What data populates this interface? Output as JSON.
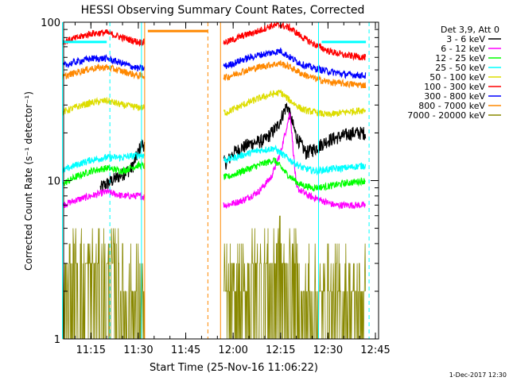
{
  "chart_data": {
    "type": "line",
    "title": "HESSI Observing Summary Count Rates, Corrected",
    "xlabel": "Start Time (25-Nov-16 11:06:22)",
    "ylabel": "Corrected Count Rate (s⁻¹ detector⁻¹)",
    "stamp": "1-Dec-2017 12:30",
    "y_scale": "log",
    "ylim": [
      1,
      100
    ],
    "y_ticks": [
      {
        "value": 1,
        "label": "1"
      },
      {
        "value": 10,
        "label": "10"
      },
      {
        "value": 100,
        "label": "100"
      }
    ],
    "x_range_minutes": [
      "11:06:22",
      "12:46:00"
    ],
    "x_ticks": [
      "11:15",
      "11:30",
      "11:45",
      "12:00",
      "12:15",
      "12:30",
      "12:45"
    ],
    "legend_title": "Det 3,9, Att 0",
    "legend_position": "right",
    "series": [
      {
        "name": "3 - 6 keV",
        "color": "#000000",
        "points": [
          [
            "11:18",
            9.0
          ],
          [
            "11:25",
            11.0
          ],
          [
            "11:28",
            12.0
          ],
          [
            "11:31",
            17.0
          ],
          [
            "11:58",
            13.0
          ],
          [
            "12:00",
            15.0
          ],
          [
            "12:05",
            17.0
          ],
          [
            "12:10",
            18.0
          ],
          [
            "12:14",
            22.0
          ],
          [
            "12:17",
            30.0
          ],
          [
            "12:20",
            19.0
          ],
          [
            "12:23",
            15.0
          ],
          [
            "12:26",
            16.0
          ],
          [
            "12:28",
            17.0
          ],
          [
            "12:30",
            18.0
          ],
          [
            "12:34",
            19.0
          ],
          [
            "12:38",
            20.0
          ],
          [
            "12:42",
            20.0
          ]
        ]
      },
      {
        "name": "6 - 12 keV",
        "color": "#ff00ff",
        "points": [
          [
            "11:06",
            7.0
          ],
          [
            "11:10",
            7.5
          ],
          [
            "11:15",
            8.0
          ],
          [
            "11:20",
            8.5
          ],
          [
            "11:25",
            8.0
          ],
          [
            "11:30",
            8.0
          ],
          [
            "11:58",
            7.0
          ],
          [
            "12:03",
            7.5
          ],
          [
            "12:08",
            8.5
          ],
          [
            "12:12",
            10.5
          ],
          [
            "12:15",
            15.0
          ],
          [
            "12:18",
            27.0
          ],
          [
            "12:20",
            9.0
          ],
          [
            "12:24",
            8.0
          ],
          [
            "12:28",
            7.5
          ],
          [
            "12:32",
            7.0
          ],
          [
            "12:37",
            7.0
          ],
          [
            "12:42",
            7.0
          ]
        ]
      },
      {
        "name": "12 - 25 keV",
        "color": "#00ff00",
        "points": [
          [
            "11:06",
            9.5
          ],
          [
            "11:10",
            10.5
          ],
          [
            "11:15",
            11.5
          ],
          [
            "11:20",
            12.0
          ],
          [
            "11:25",
            11.5
          ],
          [
            "11:30",
            12.5
          ],
          [
            "11:58",
            10.5
          ],
          [
            "12:03",
            11.5
          ],
          [
            "12:08",
            12.5
          ],
          [
            "12:13",
            13.5
          ],
          [
            "12:17",
            11.0
          ],
          [
            "12:21",
            9.5
          ],
          [
            "12:25",
            9.0
          ],
          [
            "12:30",
            9.2
          ],
          [
            "12:35",
            9.6
          ],
          [
            "12:42",
            10.0
          ]
        ]
      },
      {
        "name": "25 - 50 keV",
        "color": "#00ffff",
        "points": [
          [
            "11:06",
            11.5
          ],
          [
            "11:10",
            12.5
          ],
          [
            "11:15",
            13.5
          ],
          [
            "11:20",
            14.0
          ],
          [
            "11:25",
            14.0
          ],
          [
            "11:30",
            14.5
          ],
          [
            "11:58",
            13.5
          ],
          [
            "12:03",
            14.5
          ],
          [
            "12:08",
            15.5
          ],
          [
            "12:13",
            16.0
          ],
          [
            "12:18",
            13.5
          ],
          [
            "12:22",
            12.0
          ],
          [
            "12:26",
            11.5
          ],
          [
            "12:30",
            11.8
          ],
          [
            "12:35",
            12.0
          ],
          [
            "12:42",
            12.5
          ]
        ]
      },
      {
        "name": "50 - 100 keV",
        "color": "#dddd00",
        "points": [
          [
            "11:06",
            27.0
          ],
          [
            "11:10",
            29.0
          ],
          [
            "11:15",
            31.0
          ],
          [
            "11:20",
            32.0
          ],
          [
            "11:25",
            30.0
          ],
          [
            "11:30",
            29.0
          ],
          [
            "11:58",
            27.0
          ],
          [
            "12:03",
            30.0
          ],
          [
            "12:08",
            33.0
          ],
          [
            "12:12",
            35.0
          ],
          [
            "12:15",
            36.0
          ],
          [
            "12:18",
            32.0
          ],
          [
            "12:22",
            28.0
          ],
          [
            "12:26",
            27.0
          ],
          [
            "12:30",
            26.0
          ],
          [
            "12:35",
            27.0
          ],
          [
            "12:42",
            28.0
          ]
        ]
      },
      {
        "name": "100 - 300 keV",
        "color": "#ff0000",
        "points": [
          [
            "11:06",
            75.0
          ],
          [
            "11:10",
            79.0
          ],
          [
            "11:15",
            85.0
          ],
          [
            "11:20",
            86.0
          ],
          [
            "11:25",
            80.0
          ],
          [
            "11:30",
            75.0
          ],
          [
            "11:58",
            75.0
          ],
          [
            "12:03",
            82.0
          ],
          [
            "12:08",
            88.0
          ],
          [
            "12:12",
            95.0
          ],
          [
            "12:15",
            96.0
          ],
          [
            "12:18",
            92.0
          ],
          [
            "12:22",
            80.0
          ],
          [
            "12:26",
            72.0
          ],
          [
            "12:30",
            66.0
          ],
          [
            "12:35",
            62.0
          ],
          [
            "12:42",
            60.0
          ]
        ]
      },
      {
        "name": "300 - 800 keV",
        "color": "#0000ff",
        "points": [
          [
            "11:06",
            53.0
          ],
          [
            "11:10",
            56.0
          ],
          [
            "11:15",
            59.0
          ],
          [
            "11:20",
            59.0
          ],
          [
            "11:25",
            55.0
          ],
          [
            "11:30",
            51.0
          ],
          [
            "11:58",
            53.0
          ],
          [
            "12:03",
            58.0
          ],
          [
            "12:08",
            62.0
          ],
          [
            "12:12",
            64.0
          ],
          [
            "12:15",
            66.0
          ],
          [
            "12:18",
            60.0
          ],
          [
            "12:22",
            54.0
          ],
          [
            "12:26",
            51.0
          ],
          [
            "12:30",
            49.0
          ],
          [
            "12:35",
            47.0
          ],
          [
            "12:42",
            46.0
          ]
        ]
      },
      {
        "name": "800 - 7000 keV",
        "color": "#ff8800",
        "points": [
          [
            "11:06",
            45.0
          ],
          [
            "11:10",
            48.0
          ],
          [
            "11:15",
            51.0
          ],
          [
            "11:20",
            52.0
          ],
          [
            "11:25",
            49.0
          ],
          [
            "11:30",
            46.0
          ],
          [
            "11:58",
            45.0
          ],
          [
            "12:03",
            49.0
          ],
          [
            "12:08",
            52.0
          ],
          [
            "12:12",
            54.0
          ],
          [
            "12:15",
            55.0
          ],
          [
            "12:18",
            52.0
          ],
          [
            "12:22",
            47.0
          ],
          [
            "12:26",
            44.0
          ],
          [
            "12:30",
            42.0
          ],
          [
            "12:35",
            41.0
          ],
          [
            "12:42",
            40.0
          ]
        ]
      },
      {
        "name": "7000 - 20000 keV",
        "color": "#888800",
        "points": [
          [
            "11:06",
            2.0
          ],
          [
            "11:10",
            3.0
          ],
          [
            "11:15",
            3.3
          ],
          [
            "11:20",
            3.0
          ],
          [
            "11:25",
            2.4
          ],
          [
            "11:30",
            2.0
          ],
          [
            "11:58",
            2.0
          ],
          [
            "12:03",
            2.4
          ],
          [
            "12:08",
            2.8
          ],
          [
            "12:12",
            3.4
          ],
          [
            "12:15",
            3.6
          ],
          [
            "12:18",
            2.9
          ],
          [
            "12:22",
            2.2
          ],
          [
            "12:26",
            2.0
          ],
          [
            "12:32",
            2.0
          ],
          [
            "12:42",
            2.0
          ]
        ]
      }
    ],
    "attenuator_bars": [
      {
        "start": "11:06",
        "end": "11:20",
        "value": 75,
        "color": "#00ffff"
      },
      {
        "start": "11:33",
        "end": "11:52",
        "value": 88,
        "color": "#ff8800"
      },
      {
        "start": "12:28",
        "end": "12:42",
        "value": 75,
        "color": "#00ffff"
      }
    ],
    "vertical_markers": [
      {
        "time": "11:06",
        "color": "#00ffff",
        "style": "solid"
      },
      {
        "time": "11:21",
        "color": "#00ffff",
        "style": "dashed"
      },
      {
        "time": "11:31",
        "color": "#00ffff",
        "style": "solid"
      },
      {
        "time": "11:32",
        "color": "#ff8800",
        "style": "solid"
      },
      {
        "time": "11:52",
        "color": "#ff8800",
        "style": "dashed"
      },
      {
        "time": "11:56",
        "color": "#ff8800",
        "style": "solid"
      },
      {
        "time": "12:27",
        "color": "#00ffff",
        "style": "solid"
      },
      {
        "time": "12:43",
        "color": "#00ffff",
        "style": "dashed"
      }
    ],
    "gaps": [
      [
        "11:32",
        "11:57"
      ]
    ]
  }
}
